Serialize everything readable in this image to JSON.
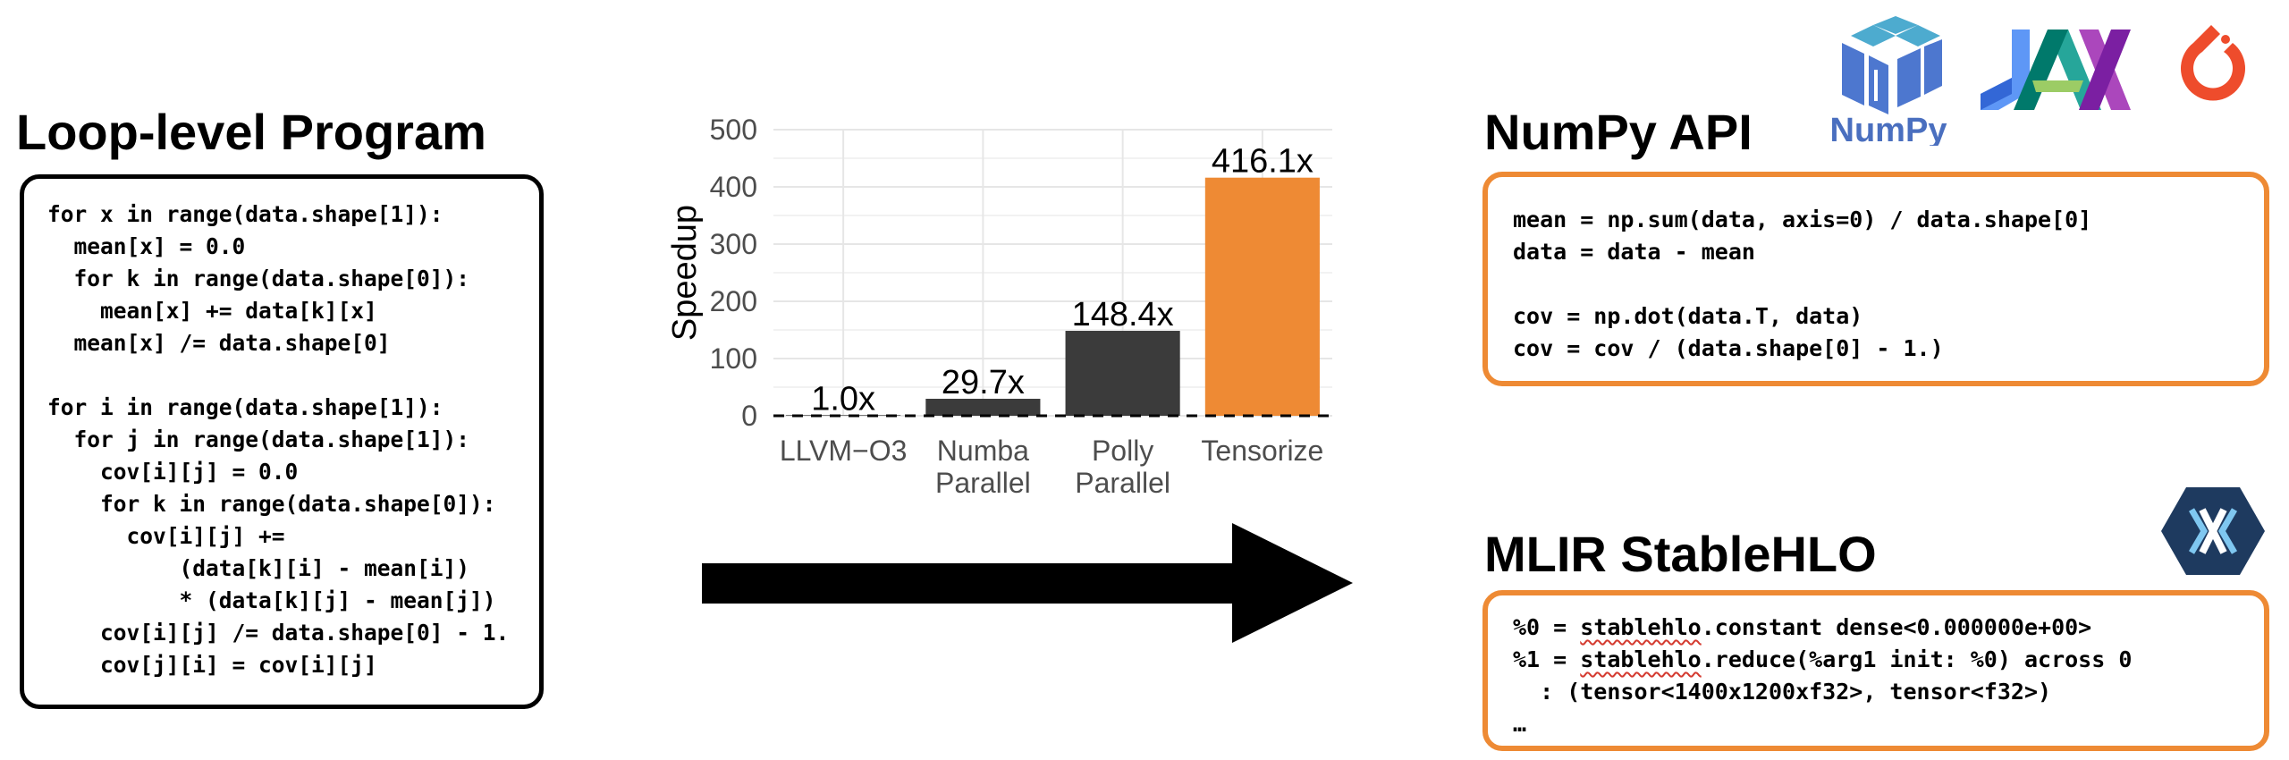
{
  "headings": {
    "loop": "Loop-level Program",
    "numpy": "NumPy API",
    "mlir": "MLIR StableHLO"
  },
  "loop_code": [
    "for x in range(data.shape[1]):",
    "  mean[x] = 0.0",
    "  for k in range(data.shape[0]):",
    "    mean[x] += data[k][x]",
    "  mean[x] /= data.shape[0]",
    "",
    "for i in range(data.shape[1]):",
    "  for j in range(data.shape[1]):",
    "    cov[i][j] = 0.0",
    "    for k in range(data.shape[0]):",
    "      cov[i][j] +=",
    "          (data[k][i] - mean[i])",
    "          * (data[k][j] - mean[j])",
    "    cov[i][j] /= data.shape[0] - 1.",
    "    cov[j][i] = cov[i][j]"
  ],
  "numpy_code": [
    "mean = np.sum(data, axis=0) / data.shape[0]",
    "data = data - mean",
    "",
    "cov = np.dot(data.T, data)",
    "cov = cov / (data.shape[0] - 1.)"
  ],
  "mlir_code": [
    {
      "pre": "%0 = ",
      "squiggle": "stablehlo",
      "post": ".constant dense<0.000000e+00>"
    },
    {
      "pre": "%1 = ",
      "squiggle": "stablehlo",
      "post": ".reduce(%arg1 init: %0) across 0"
    },
    {
      "pre": "  : (tensor<1400x1200xf32>, tensor<f32>)",
      "squiggle": "",
      "post": ""
    },
    {
      "pre": "…",
      "squiggle": "",
      "post": ""
    }
  ],
  "logos": {
    "numpy_text": "NumPy",
    "numpy_icon": "numpy-cube-logo",
    "jax_icon": "jax-logo",
    "pytorch_icon": "pytorch-flame-logo",
    "xla_icon": "openxla-hexagon-logo"
  },
  "colors": {
    "bar_dark": "#3b3b3b",
    "bar_accent": "#ee8a34",
    "box_border_orange": "#ee8a34",
    "grid": "#e6e6e6",
    "numpy_blue": "#4a6fbf",
    "xla_navy": "#1e3a5f"
  },
  "chart_data": {
    "type": "bar",
    "categories": [
      "LLVM−O3",
      "Numba\nParallel",
      "Polly\nParallel",
      "Tensorize"
    ],
    "values": [
      1.0,
      29.7,
      148.4,
      416.1
    ],
    "data_labels": [
      "1.0x",
      "29.7x",
      "148.4x",
      "416.1x"
    ],
    "ylabel": "Speedup",
    "ylim": [
      0,
      500
    ],
    "yticks": [
      0,
      100,
      200,
      300,
      400,
      500
    ],
    "reference_line": 0,
    "highlight_index": 3,
    "grid": true
  }
}
